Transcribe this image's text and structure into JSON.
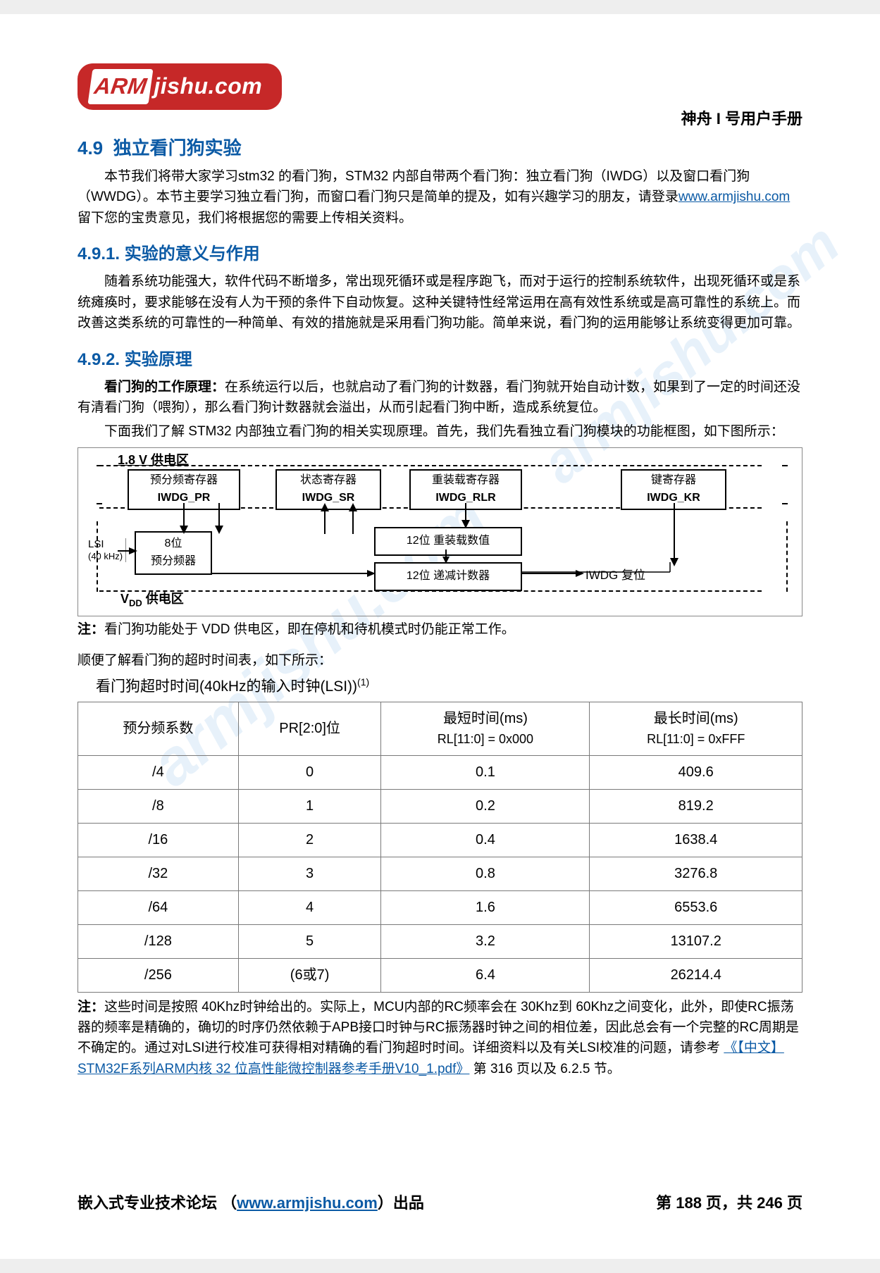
{
  "logo": {
    "arm": "ARM",
    "rest": "jishu.com"
  },
  "header_title": "神舟 I 号用户手册",
  "watermark": "armjishu.com",
  "sec49": {
    "num": "4.9",
    "title": "独立看门狗实验"
  },
  "intro": {
    "p1a": "本节我们将带大家学习stm32 的看门狗，STM32 内部自带两个看门狗：独立看门狗（IWDG）以及窗口看门狗（WWDG）。本节主要学习独立看门狗，而窗口看门狗只是简单的提及，如有兴趣学习的朋友，请登录",
    "link": "www.armjishu.com",
    "p1b": "留下您的宝贵意见，我们将根据您的需要上传相关资料。"
  },
  "sec491": {
    "num": "4.9.1.",
    "title": "实验的意义与作用"
  },
  "p491": "随着系统功能强大，软件代码不断增多，常出现死循环或是程序跑飞，而对于运行的控制系统软件，出现死循环或是系统瘫痪时，要求能够在没有人为干预的条件下自动恢复。这种关键特性经常运用在高有效性系统或是高可靠性的系统上。而改善这类系统的可靠性的一种简单、有效的措施就是采用看门狗功能。简单来说，看门狗的运用能够让系统变得更加可靠。",
  "sec492": {
    "num": "4.9.2.",
    "title": "实验原理"
  },
  "principle_lead": "看门狗的工作原理：",
  "p492a": "在系统运行以后，也就启动了看门狗的计数器，看门狗就开始自动计数，如果到了一定的时间还没有清看门狗（喂狗），那么看门狗计数器就会溢出，从而引起看门狗中断，造成系统复位。",
  "p492b": "下面我们了解 STM32 内部独立看门狗的相关实现原理。首先，我们先看独立看门狗模块的功能框图，如下图所示：",
  "diagram": {
    "supply18": "1.8 V 供电区",
    "reg_pr_t": "预分频寄存器",
    "reg_pr_b": "IWDG_PR",
    "reg_sr_t": "状态寄存器",
    "reg_sr_b": "IWDG_SR",
    "reg_rlr_t": "重装载寄存器",
    "reg_rlr_b": "IWDG_RLR",
    "reg_kr_t": "键寄存器",
    "reg_kr_b": "IWDG_KR",
    "lsi_t": "LSI",
    "lsi_b": "(40 kHz)",
    "prescaler_t": "8位",
    "prescaler_b": "预分频器",
    "reload": "12位 重装载数值",
    "counter": "12位 递减计数器",
    "reset": "IWDG 复位",
    "vdd": "V",
    "vdd_sub": "DD",
    "vdd_rest": " 供电区"
  },
  "note1_label": "注：",
  "note1_text": "看门狗功能处于 VDD 供电区，即在停机和待机模式时仍能正常工作。",
  "timeout_intro": "顺便了解看门狗的超时时间表，如下所示：",
  "timeout_title": "看门狗超时时间(40kHz的输入时钟(LSI))",
  "timeout_sup": "(1)",
  "table": {
    "h1": "预分频系数",
    "h2": "PR[2:0]位",
    "h3a": "最短时间(ms)",
    "h3b": "RL[11:0] = 0x000",
    "h4a": "最长时间(ms)",
    "h4b": "RL[11:0] = 0xFFF",
    "rows": [
      [
        "/4",
        "0",
        "0.1",
        "409.6"
      ],
      [
        "/8",
        "1",
        "0.2",
        "819.2"
      ],
      [
        "/16",
        "2",
        "0.4",
        "1638.4"
      ],
      [
        "/32",
        "3",
        "0.8",
        "3276.8"
      ],
      [
        "/64",
        "4",
        "1.6",
        "6553.6"
      ],
      [
        "/128",
        "5",
        "3.2",
        "13107.2"
      ],
      [
        "/256",
        "(6或7)",
        "6.4",
        "26214.4"
      ]
    ]
  },
  "note2_label": "注：",
  "note2_a": "这些时间是按照 40Khz时钟给出的。实际上，MCU内部的RC频率会在 30Khz到 60Khz之间变化，此外，即使RC振荡器的频率是精确的，确切的时序仍然依赖于APB接口时钟与RC振荡器时钟之间的相位差，因此总会有一个完整的RC周期是不确定的。通过对LSI进行校准可获得相对精确的看门狗超时时间。详细资料以及有关LSI校准的问题，请参考 ",
  "note2_link": "《【中文】STM32F系列ARM内核 32 位高性能微控制器参考手册V10_1.pdf》",
  "note2_b": " 第 316 页以及 6.2.5 节。",
  "footer": {
    "left_a": "嵌入式专业技术论坛 （",
    "left_link": "www.armjishu.com",
    "left_b": "）出品",
    "right": "第 188 页，共 246 页"
  }
}
